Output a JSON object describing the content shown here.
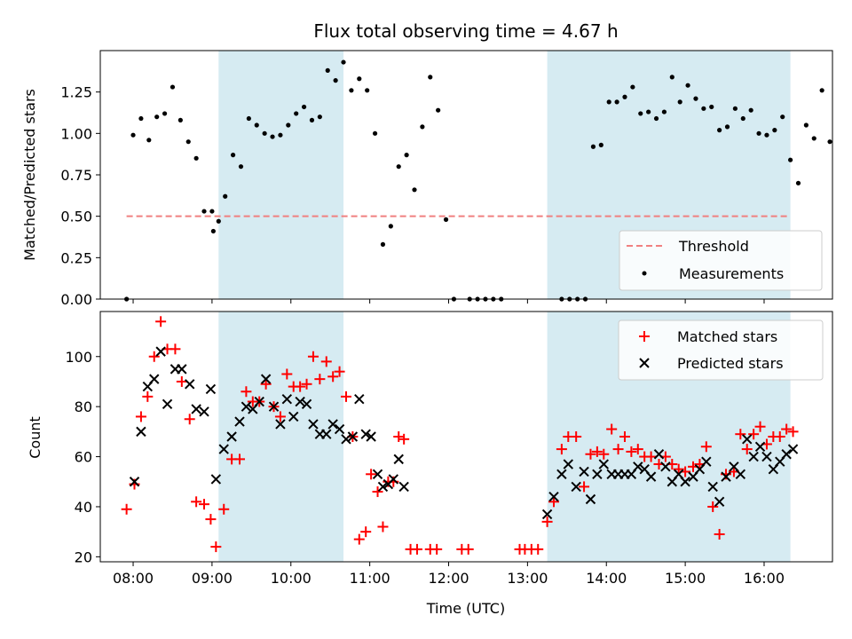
{
  "chart_data": [
    {
      "type": "scatter",
      "title": "Flux total observing time = 4.67 h",
      "xlabel": "",
      "ylabel": "Matched/Predicted stars",
      "xlim": [
        "07:35",
        "16:52"
      ],
      "ylim": [
        0,
        1.5
      ],
      "x_ticks": [
        "08:00",
        "09:00",
        "10:00",
        "11:00",
        "12:00",
        "13:00",
        "14:00",
        "15:00",
        "16:00"
      ],
      "y_ticks": [
        "0.00",
        "0.25",
        "0.50",
        "0.75",
        "1.00",
        "1.25"
      ],
      "shaded_intervals": [
        [
          "09:05",
          "10:40"
        ],
        [
          "13:15",
          "16:20"
        ]
      ],
      "threshold": {
        "name": "Threshold",
        "value": 0.5,
        "x_range": [
          "07:55",
          "16:20"
        ],
        "color": "#f08080",
        "style": "dashed"
      },
      "legend": {
        "position": "lower-right",
        "entries": [
          "Threshold",
          "Measurements"
        ]
      },
      "series": [
        {
          "name": "Measurements",
          "marker": "dot",
          "color": "#000000",
          "points": [
            [
              "07:55",
              0.0
            ],
            [
              "08:00",
              0.99
            ],
            [
              "08:06",
              1.09
            ],
            [
              "08:12",
              0.96
            ],
            [
              "08:18",
              1.1
            ],
            [
              "08:24",
              1.12
            ],
            [
              "08:30",
              1.28
            ],
            [
              "08:36",
              1.08
            ],
            [
              "08:42",
              0.95
            ],
            [
              "08:48",
              0.85
            ],
            [
              "08:54",
              0.53
            ],
            [
              "09:00",
              0.53
            ],
            [
              "09:01",
              0.41
            ],
            [
              "09:05",
              0.47
            ],
            [
              "09:10",
              0.62
            ],
            [
              "09:16",
              0.87
            ],
            [
              "09:22",
              0.8
            ],
            [
              "09:28",
              1.09
            ],
            [
              "09:34",
              1.05
            ],
            [
              "09:40",
              1.0
            ],
            [
              "09:46",
              0.98
            ],
            [
              "09:52",
              0.99
            ],
            [
              "09:58",
              1.05
            ],
            [
              "10:04",
              1.12
            ],
            [
              "10:10",
              1.16
            ],
            [
              "10:16",
              1.08
            ],
            [
              "10:22",
              1.1
            ],
            [
              "10:28",
              1.38
            ],
            [
              "10:34",
              1.32
            ],
            [
              "10:40",
              1.43
            ],
            [
              "10:46",
              1.26
            ],
            [
              "10:52",
              1.33
            ],
            [
              "10:58",
              1.26
            ],
            [
              "11:04",
              1.0
            ],
            [
              "11:10",
              0.33
            ],
            [
              "11:16",
              0.44
            ],
            [
              "11:22",
              0.8
            ],
            [
              "11:28",
              0.87
            ],
            [
              "11:34",
              0.66
            ],
            [
              "11:40",
              1.04
            ],
            [
              "11:46",
              1.34
            ],
            [
              "11:52",
              1.14
            ],
            [
              "11:58",
              0.48
            ],
            [
              "12:04",
              0.0
            ],
            [
              "12:16",
              0.0
            ],
            [
              "12:22",
              0.0
            ],
            [
              "12:28",
              0.0
            ],
            [
              "12:34",
              0.0
            ],
            [
              "12:40",
              0.0
            ],
            [
              "13:26",
              0.0
            ],
            [
              "13:32",
              0.0
            ],
            [
              "13:38",
              0.0
            ],
            [
              "13:44",
              0.0
            ],
            [
              "13:50",
              0.92
            ],
            [
              "13:56",
              0.93
            ],
            [
              "14:02",
              1.19
            ],
            [
              "14:08",
              1.19
            ],
            [
              "14:14",
              1.22
            ],
            [
              "14:20",
              1.28
            ],
            [
              "14:26",
              1.12
            ],
            [
              "14:32",
              1.13
            ],
            [
              "14:38",
              1.09
            ],
            [
              "14:44",
              1.13
            ],
            [
              "14:50",
              1.34
            ],
            [
              "14:56",
              1.19
            ],
            [
              "15:02",
              1.29
            ],
            [
              "15:08",
              1.21
            ],
            [
              "15:14",
              1.15
            ],
            [
              "15:20",
              1.16
            ],
            [
              "15:26",
              1.02
            ],
            [
              "15:32",
              1.04
            ],
            [
              "15:38",
              1.15
            ],
            [
              "15:44",
              1.09
            ],
            [
              "15:50",
              1.14
            ],
            [
              "15:56",
              1.0
            ],
            [
              "16:02",
              0.99
            ],
            [
              "16:08",
              1.02
            ],
            [
              "16:14",
              1.1
            ],
            [
              "16:20",
              0.84
            ],
            [
              "16:26",
              0.7
            ],
            [
              "16:32",
              1.05
            ],
            [
              "16:38",
              0.97
            ],
            [
              "16:44",
              1.26
            ],
            [
              "16:50",
              0.95
            ]
          ]
        }
      ]
    },
    {
      "type": "scatter",
      "title": "",
      "xlabel": "Time (UTC)",
      "ylabel": "Count",
      "xlim": [
        "07:35",
        "16:52"
      ],
      "ylim": [
        18,
        118
      ],
      "x_ticks": [
        "08:00",
        "09:00",
        "10:00",
        "11:00",
        "12:00",
        "13:00",
        "14:00",
        "15:00",
        "16:00"
      ],
      "y_ticks": [
        "20",
        "40",
        "60",
        "80",
        "100"
      ],
      "shaded_intervals": [
        [
          "09:05",
          "10:40"
        ],
        [
          "13:15",
          "16:20"
        ]
      ],
      "legend": {
        "position": "top-right",
        "entries": [
          "Matched stars",
          "Predicted stars"
        ]
      },
      "series": [
        {
          "name": "Matched stars",
          "marker": "plus",
          "color": "#ff0000",
          "points": [
            [
              "07:55",
              39
            ],
            [
              "08:01",
              49
            ],
            [
              "08:06",
              76
            ],
            [
              "08:11",
              84
            ],
            [
              "08:16",
              100
            ],
            [
              "08:21",
              114
            ],
            [
              "08:26",
              103
            ],
            [
              "08:32",
              103
            ],
            [
              "08:37",
              90
            ],
            [
              "08:43",
              75
            ],
            [
              "08:48",
              42
            ],
            [
              "08:54",
              41
            ],
            [
              "08:59",
              35
            ],
            [
              "09:03",
              24
            ],
            [
              "09:09",
              39
            ],
            [
              "09:15",
              59
            ],
            [
              "09:21",
              59
            ],
            [
              "09:26",
              86
            ],
            [
              "09:31",
              82
            ],
            [
              "09:36",
              82
            ],
            [
              "09:41",
              89
            ],
            [
              "09:47",
              80
            ],
            [
              "09:52",
              76
            ],
            [
              "09:57",
              93
            ],
            [
              "10:02",
              88
            ],
            [
              "10:07",
              88
            ],
            [
              "10:12",
              89
            ],
            [
              "10:17",
              100
            ],
            [
              "10:22",
              91
            ],
            [
              "10:27",
              98
            ],
            [
              "10:32",
              92
            ],
            [
              "10:37",
              94
            ],
            [
              "10:42",
              84
            ],
            [
              "10:47",
              68
            ],
            [
              "10:52",
              27
            ],
            [
              "10:57",
              30
            ],
            [
              "11:01",
              53
            ],
            [
              "11:06",
              46
            ],
            [
              "11:10",
              32
            ],
            [
              "11:14",
              50
            ],
            [
              "11:18",
              50
            ],
            [
              "11:22",
              68
            ],
            [
              "11:26",
              67
            ],
            [
              "11:31",
              23
            ],
            [
              "11:36",
              23
            ],
            [
              "11:46",
              23
            ],
            [
              "11:51",
              23
            ],
            [
              "12:10",
              23
            ],
            [
              "12:15",
              23
            ],
            [
              "12:54",
              23
            ],
            [
              "12:58",
              23
            ],
            [
              "13:03",
              23
            ],
            [
              "13:08",
              23
            ],
            [
              "13:15",
              34
            ],
            [
              "13:20",
              42
            ],
            [
              "13:26",
              63
            ],
            [
              "13:31",
              68
            ],
            [
              "13:37",
              68
            ],
            [
              "13:43",
              48
            ],
            [
              "13:48",
              61
            ],
            [
              "13:53",
              62
            ],
            [
              "13:58",
              61
            ],
            [
              "14:04",
              71
            ],
            [
              "14:09",
              63
            ],
            [
              "14:14",
              68
            ],
            [
              "14:19",
              62
            ],
            [
              "14:24",
              63
            ],
            [
              "14:29",
              60
            ],
            [
              "14:34",
              60
            ],
            [
              "14:40",
              57
            ],
            [
              "14:45",
              60
            ],
            [
              "14:50",
              57
            ],
            [
              "14:55",
              55
            ],
            [
              "15:00",
              54
            ],
            [
              "15:06",
              56
            ],
            [
              "15:11",
              57
            ],
            [
              "15:16",
              64
            ],
            [
              "15:21",
              40
            ],
            [
              "15:26",
              29
            ],
            [
              "15:31",
              53
            ],
            [
              "15:37",
              54
            ],
            [
              "15:42",
              69
            ],
            [
              "15:47",
              63
            ],
            [
              "15:52",
              69
            ],
            [
              "15:57",
              72
            ],
            [
              "16:02",
              65
            ],
            [
              "16:07",
              68
            ],
            [
              "16:12",
              68
            ],
            [
              "16:17",
              71
            ],
            [
              "16:22",
              70
            ]
          ]
        },
        {
          "name": "Predicted stars",
          "marker": "x",
          "color": "#000000",
          "points": [
            [
              "08:01",
              50
            ],
            [
              "08:06",
              70
            ],
            [
              "08:11",
              88
            ],
            [
              "08:16",
              91
            ],
            [
              "08:21",
              102
            ],
            [
              "08:26",
              81
            ],
            [
              "08:32",
              95
            ],
            [
              "08:37",
              95
            ],
            [
              "08:43",
              89
            ],
            [
              "08:48",
              79
            ],
            [
              "08:54",
              78
            ],
            [
              "08:59",
              87
            ],
            [
              "09:03",
              51
            ],
            [
              "09:09",
              63
            ],
            [
              "09:15",
              68
            ],
            [
              "09:21",
              74
            ],
            [
              "09:26",
              80
            ],
            [
              "09:31",
              79
            ],
            [
              "09:36",
              82
            ],
            [
              "09:41",
              91
            ],
            [
              "09:47",
              80
            ],
            [
              "09:52",
              73
            ],
            [
              "09:57",
              83
            ],
            [
              "10:02",
              76
            ],
            [
              "10:07",
              82
            ],
            [
              "10:12",
              81
            ],
            [
              "10:17",
              73
            ],
            [
              "10:22",
              69
            ],
            [
              "10:27",
              69
            ],
            [
              "10:32",
              73
            ],
            [
              "10:37",
              71
            ],
            [
              "10:42",
              67
            ],
            [
              "10:47",
              68
            ],
            [
              "10:52",
              83
            ],
            [
              "10:57",
              69
            ],
            [
              "11:01",
              68
            ],
            [
              "11:06",
              53
            ],
            [
              "11:10",
              48
            ],
            [
              "11:14",
              49
            ],
            [
              "11:18",
              51
            ],
            [
              "11:22",
              59
            ],
            [
              "11:26",
              48
            ],
            [
              "13:15",
              37
            ],
            [
              "13:20",
              44
            ],
            [
              "13:26",
              53
            ],
            [
              "13:31",
              57
            ],
            [
              "13:37",
              48
            ],
            [
              "13:43",
              54
            ],
            [
              "13:48",
              43
            ],
            [
              "13:53",
              53
            ],
            [
              "13:58",
              57
            ],
            [
              "14:04",
              53
            ],
            [
              "14:09",
              53
            ],
            [
              "14:14",
              53
            ],
            [
              "14:19",
              53
            ],
            [
              "14:24",
              56
            ],
            [
              "14:29",
              55
            ],
            [
              "14:34",
              52
            ],
            [
              "14:40",
              61
            ],
            [
              "14:45",
              56
            ],
            [
              "14:50",
              50
            ],
            [
              "14:55",
              53
            ],
            [
              "15:00",
              50
            ],
            [
              "15:06",
              52
            ],
            [
              "15:11",
              55
            ],
            [
              "15:16",
              58
            ],
            [
              "15:21",
              48
            ],
            [
              "15:26",
              42
            ],
            [
              "15:31",
              52
            ],
            [
              "15:37",
              56
            ],
            [
              "15:42",
              53
            ],
            [
              "15:47",
              67
            ],
            [
              "15:52",
              60
            ],
            [
              "15:57",
              64
            ],
            [
              "16:02",
              60
            ],
            [
              "16:07",
              55
            ],
            [
              "16:12",
              58
            ],
            [
              "16:17",
              61
            ],
            [
              "16:22",
              63
            ]
          ]
        }
      ]
    }
  ]
}
